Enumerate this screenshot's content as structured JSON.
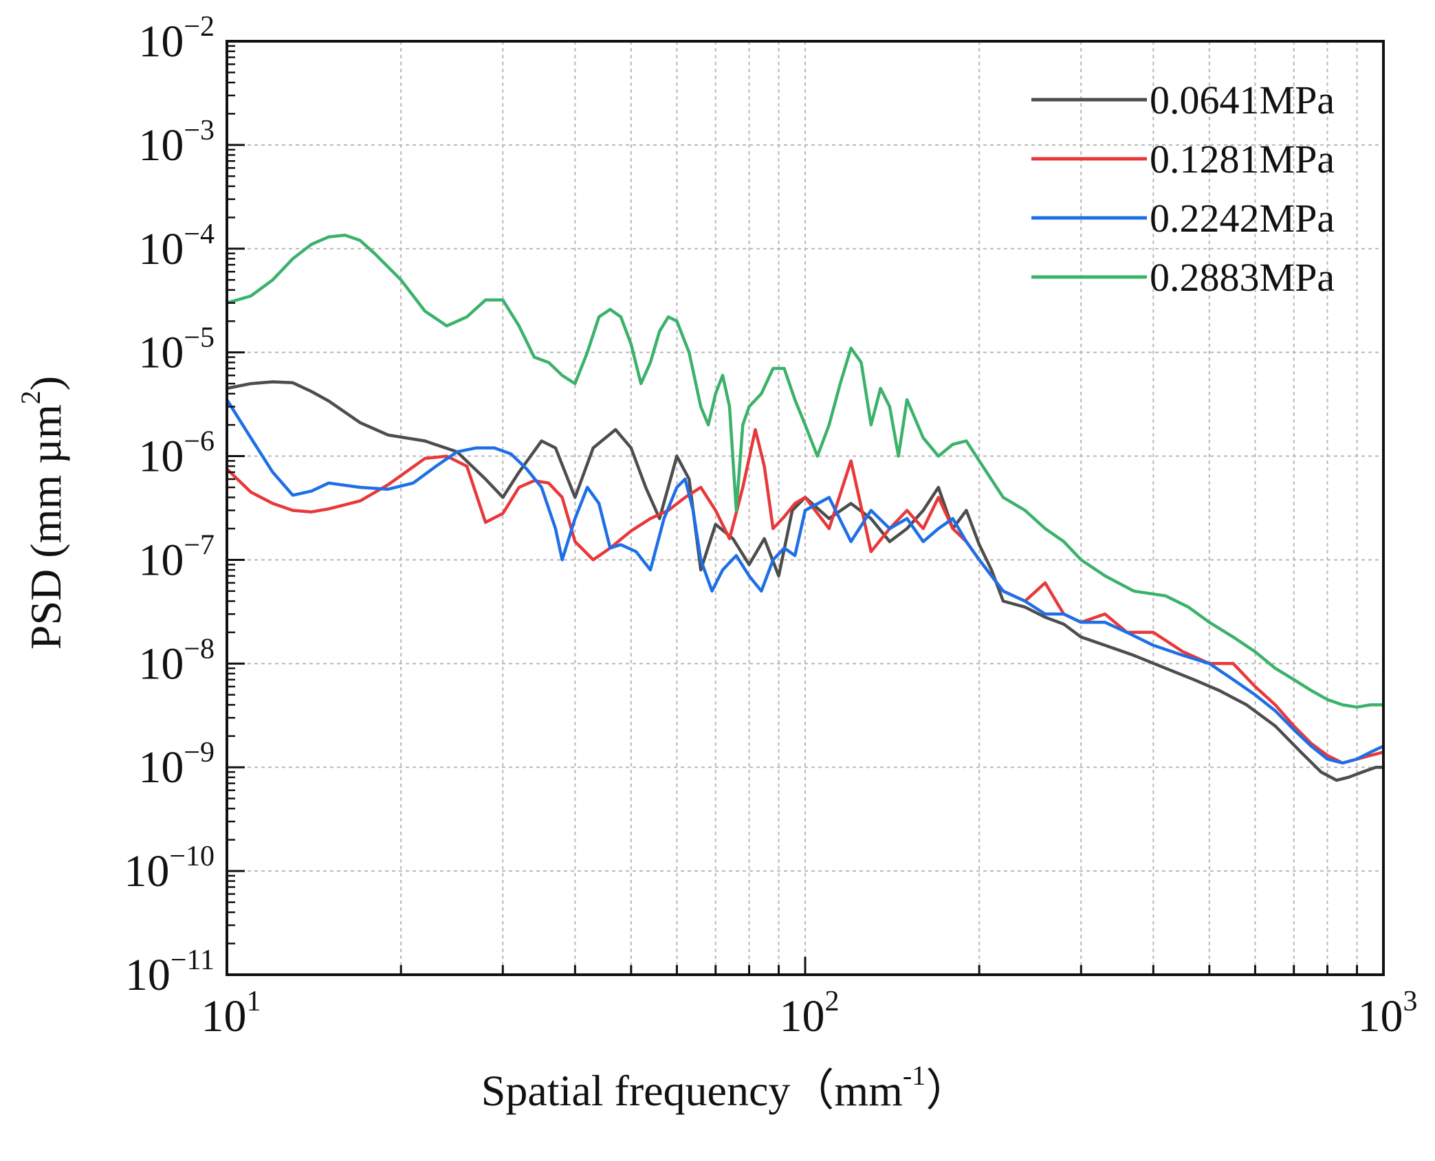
{
  "chart_data": {
    "type": "line",
    "title": "",
    "xlabel": "Spatial frequency（mm",
    "xlabel_unit_exp": "-1",
    "xlabel_close": "）",
    "ylabel": "PSD (mm µm",
    "ylabel_unit_exp": "2",
    "ylabel_close": ")",
    "x_scale": "log",
    "y_scale": "log",
    "xlim": [
      10,
      1000
    ],
    "ylim": [
      1e-11,
      0.01
    ],
    "grid": true,
    "legend_position": "top-right",
    "x_ticks": [
      {
        "value": 10,
        "base": "10",
        "exp": "1"
      },
      {
        "value": 100,
        "base": "10",
        "exp": "2"
      },
      {
        "value": 1000,
        "base": "10",
        "exp": "3"
      }
    ],
    "y_ticks": [
      {
        "value": 0.01,
        "base": "10",
        "exp": "−2"
      },
      {
        "value": 0.001,
        "base": "10",
        "exp": "−3"
      },
      {
        "value": 0.0001,
        "base": "10",
        "exp": "−4"
      },
      {
        "value": 1e-05,
        "base": "10",
        "exp": "−5"
      },
      {
        "value": 1e-06,
        "base": "10",
        "exp": "−6"
      },
      {
        "value": 1e-07,
        "base": "10",
        "exp": "−7"
      },
      {
        "value": 1e-08,
        "base": "10",
        "exp": "−8"
      },
      {
        "value": 1e-09,
        "base": "10",
        "exp": "−9"
      },
      {
        "value": 1e-10,
        "base": "10",
        "exp": "−10"
      },
      {
        "value": 1e-11,
        "base": "10",
        "exp": "−11"
      }
    ],
    "series": [
      {
        "name": "0.0641MPa",
        "color": "#4d4d4d",
        "points": [
          [
            10,
            4.5e-06
          ],
          [
            11,
            5e-06
          ],
          [
            12,
            5.2e-06
          ],
          [
            13,
            5.1e-06
          ],
          [
            14,
            4.2e-06
          ],
          [
            15,
            3.4e-06
          ],
          [
            17,
            2.1e-06
          ],
          [
            19,
            1.6e-06
          ],
          [
            22,
            1.4e-06
          ],
          [
            25,
            1.1e-06
          ],
          [
            28,
            6e-07
          ],
          [
            30,
            4e-07
          ],
          [
            32,
            7e-07
          ],
          [
            35,
            1.4e-06
          ],
          [
            37,
            1.2e-06
          ],
          [
            40,
            4e-07
          ],
          [
            43,
            1.2e-06
          ],
          [
            47,
            1.8e-06
          ],
          [
            50,
            1.2e-06
          ],
          [
            53,
            5e-07
          ],
          [
            56,
            2.5e-07
          ],
          [
            60,
            1e-06
          ],
          [
            63,
            6e-07
          ],
          [
            66,
            8e-08
          ],
          [
            70,
            2.2e-07
          ],
          [
            75,
            1.6e-07
          ],
          [
            80,
            9e-08
          ],
          [
            85,
            1.6e-07
          ],
          [
            90,
            7e-08
          ],
          [
            95,
            3e-07
          ],
          [
            100,
            4e-07
          ],
          [
            110,
            2.5e-07
          ],
          [
            120,
            3.5e-07
          ],
          [
            130,
            2.5e-07
          ],
          [
            140,
            1.5e-07
          ],
          [
            150,
            2e-07
          ],
          [
            160,
            3e-07
          ],
          [
            170,
            5e-07
          ],
          [
            180,
            2e-07
          ],
          [
            190,
            3e-07
          ],
          [
            200,
            1.4e-07
          ],
          [
            210,
            8e-08
          ],
          [
            220,
            4e-08
          ],
          [
            240,
            3.5e-08
          ],
          [
            260,
            2.8e-08
          ],
          [
            280,
            2.4e-08
          ],
          [
            300,
            1.8e-08
          ],
          [
            330,
            1.5e-08
          ],
          [
            370,
            1.2e-08
          ],
          [
            420,
            9e-09
          ],
          [
            470,
            7e-09
          ],
          [
            520,
            5.5e-09
          ],
          [
            580,
            4e-09
          ],
          [
            650,
            2.5e-09
          ],
          [
            720,
            1.4e-09
          ],
          [
            780,
            9e-10
          ],
          [
            830,
            7.5e-10
          ],
          [
            870,
            8e-10
          ],
          [
            920,
            9e-10
          ],
          [
            970,
            1e-09
          ],
          [
            1000,
            1e-09
          ]
        ]
      },
      {
        "name": "0.1281MPa",
        "color": "#e8383a",
        "points": [
          [
            10,
            7.5e-07
          ],
          [
            11,
            4.5e-07
          ],
          [
            12,
            3.5e-07
          ],
          [
            13,
            3e-07
          ],
          [
            14,
            2.9e-07
          ],
          [
            15,
            3.1e-07
          ],
          [
            17,
            3.7e-07
          ],
          [
            19,
            5.3e-07
          ],
          [
            22,
            9.5e-07
          ],
          [
            24,
            1e-06
          ],
          [
            26,
            8e-07
          ],
          [
            28,
            2.3e-07
          ],
          [
            30,
            2.8e-07
          ],
          [
            32,
            5e-07
          ],
          [
            34,
            5.8e-07
          ],
          [
            36,
            5.5e-07
          ],
          [
            38,
            4e-07
          ],
          [
            40,
            1.5e-07
          ],
          [
            43,
            1e-07
          ],
          [
            46,
            1.3e-07
          ],
          [
            50,
            1.9e-07
          ],
          [
            54,
            2.5e-07
          ],
          [
            58,
            3e-07
          ],
          [
            62,
            4e-07
          ],
          [
            66,
            5e-07
          ],
          [
            70,
            3e-07
          ],
          [
            74,
            1.6e-07
          ],
          [
            78,
            5e-07
          ],
          [
            82,
            1.8e-06
          ],
          [
            85,
            8e-07
          ],
          [
            88,
            2e-07
          ],
          [
            92,
            2.6e-07
          ],
          [
            96,
            3.5e-07
          ],
          [
            100,
            4e-07
          ],
          [
            110,
            2e-07
          ],
          [
            120,
            9e-07
          ],
          [
            130,
            1.2e-07
          ],
          [
            140,
            2e-07
          ],
          [
            150,
            3e-07
          ],
          [
            160,
            2e-07
          ],
          [
            170,
            4e-07
          ],
          [
            180,
            2e-07
          ],
          [
            190,
            1.5e-07
          ],
          [
            200,
            1e-07
          ],
          [
            220,
            5e-08
          ],
          [
            240,
            4e-08
          ],
          [
            260,
            6e-08
          ],
          [
            280,
            3e-08
          ],
          [
            300,
            2.5e-08
          ],
          [
            330,
            3e-08
          ],
          [
            360,
            2e-08
          ],
          [
            400,
            2e-08
          ],
          [
            450,
            1.3e-08
          ],
          [
            500,
            1e-08
          ],
          [
            550,
            1e-08
          ],
          [
            600,
            6e-09
          ],
          [
            650,
            4e-09
          ],
          [
            700,
            2.5e-09
          ],
          [
            750,
            1.7e-09
          ],
          [
            800,
            1.3e-09
          ],
          [
            850,
            1.1e-09
          ],
          [
            900,
            1.2e-09
          ],
          [
            950,
            1.3e-09
          ],
          [
            1000,
            1.4e-09
          ]
        ]
      },
      {
        "name": "0.2242MPa",
        "color": "#1e6fe6",
        "points": [
          [
            10,
            3.5e-06
          ],
          [
            11,
            1.5e-06
          ],
          [
            12,
            7e-07
          ],
          [
            13,
            4.2e-07
          ],
          [
            14,
            4.6e-07
          ],
          [
            15,
            5.5e-07
          ],
          [
            17,
            5e-07
          ],
          [
            19,
            4.8e-07
          ],
          [
            21,
            5.5e-07
          ],
          [
            23,
            8e-07
          ],
          [
            25,
            1.1e-06
          ],
          [
            27,
            1.2e-06
          ],
          [
            29,
            1.2e-06
          ],
          [
            31,
            1.05e-06
          ],
          [
            33,
            7.5e-07
          ],
          [
            35,
            5e-07
          ],
          [
            37,
            2e-07
          ],
          [
            38,
            1e-07
          ],
          [
            40,
            2.5e-07
          ],
          [
            42,
            5e-07
          ],
          [
            44,
            3.5e-07
          ],
          [
            46,
            1.3e-07
          ],
          [
            48,
            1.4e-07
          ],
          [
            51,
            1.2e-07
          ],
          [
            54,
            8e-08
          ],
          [
            57,
            2.5e-07
          ],
          [
            60,
            5e-07
          ],
          [
            62,
            6e-07
          ],
          [
            64,
            3e-07
          ],
          [
            66,
            1e-07
          ],
          [
            69,
            5e-08
          ],
          [
            72,
            8e-08
          ],
          [
            76,
            1.1e-07
          ],
          [
            80,
            7e-08
          ],
          [
            84,
            5e-08
          ],
          [
            88,
            1e-07
          ],
          [
            92,
            1.3e-07
          ],
          [
            96,
            1.1e-07
          ],
          [
            100,
            3e-07
          ],
          [
            110,
            4e-07
          ],
          [
            120,
            1.5e-07
          ],
          [
            130,
            3e-07
          ],
          [
            140,
            2e-07
          ],
          [
            150,
            2.5e-07
          ],
          [
            160,
            1.5e-07
          ],
          [
            170,
            2e-07
          ],
          [
            180,
            2.5e-07
          ],
          [
            190,
            1.5e-07
          ],
          [
            200,
            1e-07
          ],
          [
            220,
            5e-08
          ],
          [
            240,
            4e-08
          ],
          [
            260,
            3e-08
          ],
          [
            280,
            3e-08
          ],
          [
            300,
            2.5e-08
          ],
          [
            330,
            2.5e-08
          ],
          [
            360,
            2e-08
          ],
          [
            400,
            1.5e-08
          ],
          [
            450,
            1.2e-08
          ],
          [
            500,
            1e-08
          ],
          [
            550,
            7e-09
          ],
          [
            600,
            5e-09
          ],
          [
            650,
            3.5e-09
          ],
          [
            700,
            2.3e-09
          ],
          [
            750,
            1.6e-09
          ],
          [
            800,
            1.2e-09
          ],
          [
            850,
            1.1e-09
          ],
          [
            900,
            1.2e-09
          ],
          [
            950,
            1.4e-09
          ],
          [
            1000,
            1.6e-09
          ]
        ]
      },
      {
        "name": "0.2883MPa",
        "color": "#3bb26a",
        "points": [
          [
            10,
            3e-05
          ],
          [
            11,
            3.5e-05
          ],
          [
            12,
            5e-05
          ],
          [
            13,
            8e-05
          ],
          [
            14,
            0.00011
          ],
          [
            15,
            0.00013
          ],
          [
            16,
            0.000135
          ],
          [
            17,
            0.00012
          ],
          [
            18,
            9e-05
          ],
          [
            20,
            5e-05
          ],
          [
            22,
            2.5e-05
          ],
          [
            24,
            1.8e-05
          ],
          [
            26,
            2.2e-05
          ],
          [
            28,
            3.2e-05
          ],
          [
            30,
            3.2e-05
          ],
          [
            32,
            1.8e-05
          ],
          [
            34,
            9e-06
          ],
          [
            36,
            8e-06
          ],
          [
            38,
            6e-06
          ],
          [
            40,
            5e-06
          ],
          [
            42,
            1e-05
          ],
          [
            44,
            2.2e-05
          ],
          [
            46,
            2.6e-05
          ],
          [
            48,
            2.2e-05
          ],
          [
            50,
            1.2e-05
          ],
          [
            52,
            5e-06
          ],
          [
            54,
            8e-06
          ],
          [
            56,
            1.6e-05
          ],
          [
            58,
            2.2e-05
          ],
          [
            60,
            2e-05
          ],
          [
            63,
            1e-05
          ],
          [
            66,
            3e-06
          ],
          [
            68,
            2e-06
          ],
          [
            70,
            4e-06
          ],
          [
            72,
            6e-06
          ],
          [
            74,
            3e-06
          ],
          [
            76,
            3e-07
          ],
          [
            78,
            2e-06
          ],
          [
            80,
            3e-06
          ],
          [
            84,
            4e-06
          ],
          [
            88,
            7e-06
          ],
          [
            92,
            7e-06
          ],
          [
            96,
            3.5e-06
          ],
          [
            100,
            2e-06
          ],
          [
            105,
            1e-06
          ],
          [
            110,
            2e-06
          ],
          [
            115,
            5e-06
          ],
          [
            120,
            1.1e-05
          ],
          [
            125,
            8e-06
          ],
          [
            130,
            2e-06
          ],
          [
            135,
            4.5e-06
          ],
          [
            140,
            3e-06
          ],
          [
            145,
            1e-06
          ],
          [
            150,
            3.5e-06
          ],
          [
            160,
            1.5e-06
          ],
          [
            170,
            1e-06
          ],
          [
            180,
            1.3e-06
          ],
          [
            190,
            1.4e-06
          ],
          [
            200,
            9e-07
          ],
          [
            220,
            4e-07
          ],
          [
            240,
            3e-07
          ],
          [
            260,
            2e-07
          ],
          [
            280,
            1.5e-07
          ],
          [
            300,
            1e-07
          ],
          [
            330,
            7e-08
          ],
          [
            370,
            5e-08
          ],
          [
            420,
            4.5e-08
          ],
          [
            460,
            3.5e-08
          ],
          [
            500,
            2.5e-08
          ],
          [
            550,
            1.8e-08
          ],
          [
            600,
            1.3e-08
          ],
          [
            650,
            9e-09
          ],
          [
            700,
            7e-09
          ],
          [
            750,
            5.5e-09
          ],
          [
            800,
            4.5e-09
          ],
          [
            850,
            4e-09
          ],
          [
            900,
            3.8e-09
          ],
          [
            950,
            4e-09
          ],
          [
            1000,
            4e-09
          ]
        ]
      }
    ]
  }
}
